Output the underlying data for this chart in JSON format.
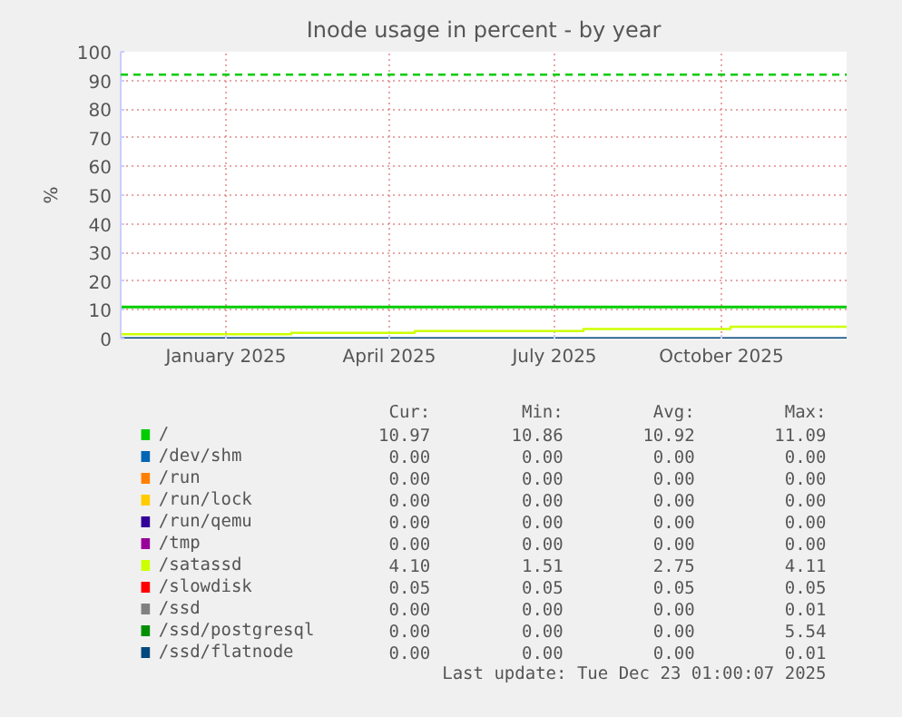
{
  "chart_data": {
    "type": "line",
    "title": "Inode usage in percent - by year",
    "ylabel": "%",
    "xlim": [
      "2024-11-18",
      "2025-12-23"
    ],
    "ylim": [
      0,
      100
    ],
    "xticks": [
      {
        "value": "2025-01-15",
        "label": "January 2025"
      },
      {
        "value": "2025-04-15",
        "label": "April 2025"
      },
      {
        "value": "2025-07-15",
        "label": "July 2025"
      },
      {
        "value": "2025-10-15",
        "label": "October 2025"
      }
    ],
    "yticks": [
      0,
      10,
      20,
      30,
      40,
      50,
      60,
      70,
      80,
      90,
      100
    ],
    "grid": true,
    "legend": "bottom",
    "ref_lines": [
      {
        "axis": "y",
        "value": 92,
        "color": "#00cc00",
        "line_style": "dashed"
      }
    ],
    "series": [
      {
        "name": "/",
        "color": "#00cc00",
        "x": [
          "2024-11-18",
          "2025-12-23"
        ],
        "values": [
          11,
          11
        ]
      },
      {
        "name": "/dev/shm",
        "color": "#0066b3"
      },
      {
        "name": "/run",
        "color": "#ff8000"
      },
      {
        "name": "/run/lock",
        "color": "#ffcc00"
      },
      {
        "name": "/run/qemu",
        "color": "#330099"
      },
      {
        "name": "/tmp",
        "color": "#990099"
      },
      {
        "name": "/satassd",
        "color": "#ccff00",
        "type": "step",
        "x": [
          "2024-11-18",
          "2025-02-20",
          "2025-04-29",
          "2025-07-31",
          "2025-10-20",
          "2025-12-23"
        ],
        "values": [
          1.5,
          2.0,
          2.6,
          3.3,
          4.1,
          4.1
        ]
      },
      {
        "name": "/slowdisk",
        "color": "#ff0000"
      },
      {
        "name": "/ssd",
        "color": "#808080"
      },
      {
        "name": "/ssd/postgresql",
        "color": "#008f00"
      },
      {
        "name": "/ssd/flatnode",
        "color": "#00487d",
        "x": [
          "2024-11-18",
          "2025-12-23"
        ],
        "values": [
          0,
          0
        ]
      }
    ],
    "annotations": [
      "Cur: Min: Avg: Max:",
      "10.97 10.86 10.92 11.09",
      "0.00 0.00 0.00 0.00",
      "0.00 0.00 0.00 0.00",
      "0.00 0.00 0.00 0.00",
      "0.00 0.00 0.00 0.00",
      "0.00 0.00 0.00 0.00",
      "4.10 1.51 2.75 4.11",
      "0.05 0.05 0.05 0.05",
      "0.00 0.00 0.00 0.01",
      "0.00 0.00 0.00 5.54",
      "0.00 0.00 0.00 0.01",
      "Last update: Tue Dec 23 01:00:07 2025"
    ]
  }
}
